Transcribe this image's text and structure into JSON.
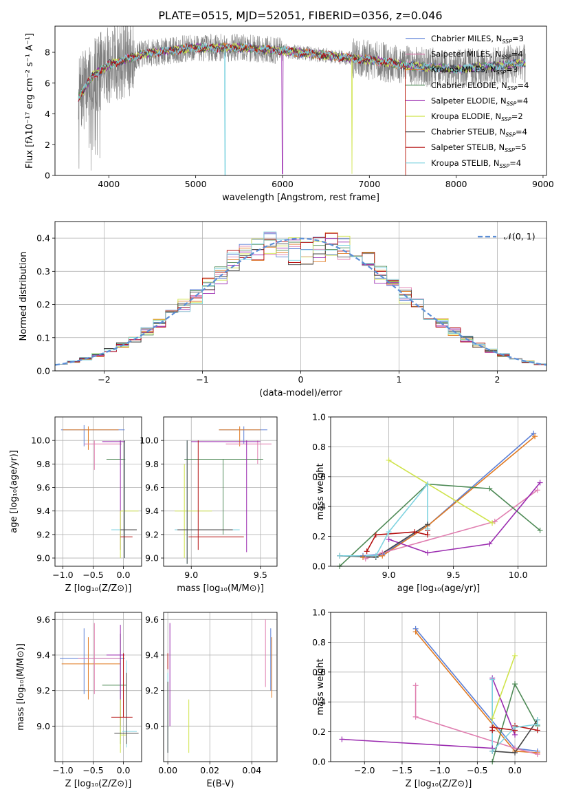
{
  "figure": {
    "title": "PLATE=0515, MJD=52051, FIBERID=0356, z=0.046"
  },
  "colors": {
    "cm": "#5b7fd6",
    "sm": "#e07fb0",
    "km": "#e07a22",
    "ce": "#4e8a56",
    "se": "#9b2cb0",
    "ke": "#cfe34a",
    "cs": "#444444",
    "ss": "#b40f0f",
    "ks": "#7fd3e0",
    "data": "#808080",
    "normal": "#5b8ed6"
  },
  "chart_data": [
    {
      "id": "spectrum",
      "type": "line",
      "xlabel": "wavelength [Angstrom, rest frame]",
      "ylabel": "Flux [fλ10⁻¹⁷ erg cm⁻² s⁻¹ A⁻¹]",
      "xlim": [
        3380,
        9040
      ],
      "ylim": [
        0,
        9.7
      ],
      "xticks": [
        "4000",
        "5000",
        "6000",
        "7000",
        "8000",
        "9000"
      ],
      "yticks": [
        "0",
        "2",
        "4",
        "6",
        "8"
      ],
      "wavelength_range": [
        3650,
        8800
      ],
      "continuum": [
        [
          3650,
          5.0
        ],
        [
          3800,
          6.4
        ],
        [
          4000,
          7.2
        ],
        [
          4400,
          7.9
        ],
        [
          5000,
          8.3
        ],
        [
          5500,
          8.3
        ],
        [
          6000,
          8.1
        ],
        [
          6500,
          7.8
        ],
        [
          7000,
          7.5
        ],
        [
          7500,
          7.1
        ],
        [
          8000,
          6.9
        ],
        [
          8800,
          7.3
        ]
      ],
      "legend": [
        {
          "label": "Chabrier MILES, N",
          "sub": "SSP",
          "tail": "=3",
          "color": "cm"
        },
        {
          "label": "Salpeter MILES, N",
          "sub": "SSP",
          "tail": "=4",
          "color": "sm"
        },
        {
          "label": "Kroupa MILES, N",
          "sub": "SSP",
          "tail": "=3",
          "color": "km"
        },
        {
          "label": "Chabrier ELODIE, N",
          "sub": "SSP",
          "tail": "=4",
          "color": "ce"
        },
        {
          "label": "Salpeter ELODIE, N",
          "sub": "SSP",
          "tail": "=4",
          "color": "se"
        },
        {
          "label": "Kroupa ELODIE, N",
          "sub": "SSP",
          "tail": "=2",
          "color": "ke"
        },
        {
          "label": "Chabrier STELIB, N",
          "sub": "SSP",
          "tail": "=4",
          "color": "cs"
        },
        {
          "label": "Salpeter STELIB, N",
          "sub": "SSP",
          "tail": "=5",
          "color": "ss"
        },
        {
          "label": "Kroupa STELIB, N",
          "sub": "SSP",
          "tail": "=4",
          "color": "ks"
        }
      ]
    },
    {
      "id": "residuals",
      "type": "step",
      "xlabel": "(data-model)/error",
      "ylabel": "Normed distribution",
      "xlim": [
        -2.5,
        2.5
      ],
      "ylim": [
        0,
        0.45
      ],
      "xticks": [
        "−2",
        "−1",
        "0",
        "1",
        "2"
      ],
      "yticks": [
        "0.0",
        "0.1",
        "0.2",
        "0.3",
        "0.4"
      ],
      "legend": "𝒩(0, 1)",
      "bin_width": 0.125
    },
    {
      "id": "age_vs_Z",
      "type": "errorbar",
      "xlabel": "Z [log₁₀(Z/Z⊙)]",
      "ylabel": "age  [log₁₀(age/yr)]",
      "xlim": [
        -1.13,
        0.3
      ],
      "ylim": [
        8.93,
        10.2
      ],
      "xticks": [
        "−1.0",
        "−0.5",
        "0.0"
      ],
      "yticks": [
        "9.0",
        "9.2",
        "9.4",
        "9.6",
        "9.8",
        "10.0"
      ],
      "points": [
        {
          "c": "cm",
          "x": -0.65,
          "ex": [
            -1.03,
            0.02
          ],
          "y": 10.09,
          "ey": [
            9.95,
            10.13
          ]
        },
        {
          "c": "km",
          "x": -0.58,
          "ex": [
            -1.0,
            -0.08
          ],
          "y": 10.09,
          "ey": [
            9.92,
            10.12
          ]
        },
        {
          "c": "sm",
          "x": -0.48,
          "ex": [
            -0.65,
            -0.03
          ],
          "y": 9.97,
          "ey": [
            9.75,
            10.0
          ]
        },
        {
          "c": "ce",
          "x": -0.05,
          "ex": [
            -0.28,
            0.03
          ],
          "y": 9.84,
          "ey": [
            9.84,
            10.0
          ]
        },
        {
          "c": "se",
          "x": -0.05,
          "ex": [
            -0.35,
            0.02
          ],
          "y": 9.99,
          "ey": [
            9.07,
            10.0
          ]
        },
        {
          "c": "ke",
          "x": -0.05,
          "ex": [
            -0.05,
            0.25
          ],
          "y": 9.4,
          "ey": [
            9.0,
            9.4
          ]
        },
        {
          "c": "ks",
          "x": 0.02,
          "ex": [
            -0.2,
            0.2
          ],
          "y": 9.24,
          "ey": [
            9.0,
            10.0
          ]
        },
        {
          "c": "cs",
          "x": 0.02,
          "ex": [
            -0.05,
            0.22
          ],
          "y": 9.24,
          "ey": [
            9.0,
            10.0
          ]
        },
        {
          "c": "ss",
          "x": 0.05,
          "ex": [
            -0.05,
            0.15
          ],
          "y": 9.18,
          "ey": [
            9.18,
            9.18
          ]
        }
      ]
    },
    {
      "id": "age_vs_mass",
      "type": "errorbar",
      "xlabel": "mass [log₁₀(M/M⊙)]",
      "ylabel": "",
      "xlim": [
        8.8,
        9.62
      ],
      "ylim": [
        8.93,
        10.2
      ],
      "xticks": [
        "9.0",
        "9.5"
      ],
      "yticks": [
        "9.0",
        "9.2",
        "9.4",
        "9.6",
        "9.8",
        "10.0"
      ],
      "points": [
        {
          "c": "cm",
          "x": 9.38,
          "ex": [
            9.2,
            9.55
          ],
          "y": 10.09,
          "ey": [
            9.97,
            10.12
          ]
        },
        {
          "c": "km",
          "x": 9.35,
          "ex": [
            9.2,
            9.5
          ],
          "y": 10.09,
          "ey": [
            9.95,
            10.12
          ]
        },
        {
          "c": "sm",
          "x": 9.48,
          "ex": [
            9.25,
            9.58
          ],
          "y": 9.97,
          "ey": [
            9.8,
            10.0
          ]
        },
        {
          "c": "ce",
          "x": 9.23,
          "ex": [
            8.95,
            9.52
          ],
          "y": 9.84,
          "ey": [
            9.2,
            9.84
          ]
        },
        {
          "c": "se",
          "x": 9.4,
          "ex": [
            9.0,
            9.5
          ],
          "y": 9.99,
          "ey": [
            9.05,
            10.0
          ]
        },
        {
          "c": "ke",
          "x": 8.95,
          "ex": [
            8.88,
            9.15
          ],
          "y": 9.4,
          "ey": [
            9.0,
            9.8
          ]
        },
        {
          "c": "ks",
          "x": 8.97,
          "ex": [
            8.88,
            9.35
          ],
          "y": 9.24,
          "ey": [
            8.95,
            10.0
          ]
        },
        {
          "c": "cs",
          "x": 8.97,
          "ex": [
            8.9,
            9.3
          ],
          "y": 9.24,
          "ey": [
            8.95,
            10.0
          ]
        },
        {
          "c": "ss",
          "x": 9.05,
          "ex": [
            8.98,
            9.38
          ],
          "y": 9.18,
          "ey": [
            9.07,
            10.0
          ]
        }
      ]
    },
    {
      "id": "weight_vs_age",
      "type": "line",
      "xlabel": "age  [log₁₀(age/yr)]",
      "ylabel": "mass weight",
      "xlim": [
        8.55,
        10.22
      ],
      "ylim": [
        0,
        1.0
      ],
      "xticks": [
        "9.0",
        "9.5",
        "10.0"
      ],
      "yticks": [
        "0.0",
        "0.2",
        "0.4",
        "0.6",
        "0.8",
        "1.0"
      ],
      "series": [
        {
          "c": "cm",
          "x": [
            8.8,
            8.95,
            9.3,
            10.12
          ],
          "y": [
            0.07,
            0.08,
            0.27,
            0.89
          ]
        },
        {
          "c": "km",
          "x": [
            8.8,
            8.95,
            9.3,
            10.13
          ],
          "y": [
            0.06,
            0.07,
            0.27,
            0.87
          ]
        },
        {
          "c": "sm",
          "x": [
            8.82,
            8.95,
            9.82,
            10.15
          ],
          "y": [
            0.05,
            0.09,
            0.3,
            0.51
          ]
        },
        {
          "c": "ce",
          "x": [
            8.62,
            9.3,
            9.78,
            10.17
          ],
          "y": [
            0.0,
            0.55,
            0.52,
            0.24
          ]
        },
        {
          "c": "se",
          "x": [
            9.0,
            9.3,
            9.78,
            10.17
          ],
          "y": [
            0.18,
            0.09,
            0.15,
            0.56
          ]
        },
        {
          "c": "ke",
          "x": [
            9.0,
            9.8
          ],
          "y": [
            0.71,
            0.29
          ]
        },
        {
          "c": "cs",
          "x": [
            8.62,
            8.9,
            9.3
          ],
          "y": [
            0.07,
            0.06,
            0.28
          ]
        },
        {
          "c": "ss",
          "x": [
            8.83,
            8.9,
            9.2,
            9.3,
            9.3
          ],
          "y": [
            0.1,
            0.21,
            0.23,
            0.21,
            0.24
          ]
        },
        {
          "c": "ks",
          "x": [
            8.62,
            8.9,
            9.0,
            9.3,
            9.3
          ],
          "y": [
            0.07,
            0.07,
            0.23,
            0.55,
            0.25
          ]
        }
      ]
    },
    {
      "id": "mass_vs_Z",
      "type": "errorbar",
      "xlabel": "Z [log₁₀(Z/Z⊙)]",
      "ylabel": "mass [log₁₀(M/M⊙)]",
      "xlim": [
        -1.13,
        0.3
      ],
      "ylim": [
        8.8,
        9.64
      ],
      "xticks": [
        "−1.0",
        "−0.5",
        "0.0"
      ],
      "yticks": [
        "9.0",
        "9.2",
        "9.4",
        "9.6"
      ],
      "points": [
        {
          "c": "cm",
          "x": -0.65,
          "ex": [
            -1.05,
            0.02
          ],
          "y": 9.38,
          "ey": [
            9.18,
            9.55
          ]
        },
        {
          "c": "km",
          "x": -0.58,
          "ex": [
            -1.02,
            -0.05
          ],
          "y": 9.35,
          "ey": [
            9.15,
            9.5
          ]
        },
        {
          "c": "sm",
          "x": -0.48,
          "ex": [
            -0.75,
            -0.05
          ],
          "y": 9.38,
          "ey": [
            9.18,
            9.58
          ]
        },
        {
          "c": "ce",
          "x": -0.05,
          "ex": [
            -0.35,
            0.05
          ],
          "y": 9.23,
          "ey": [
            8.9,
            9.52
          ]
        },
        {
          "c": "se",
          "x": -0.05,
          "ex": [
            -0.28,
            0.02
          ],
          "y": 9.4,
          "ey": [
            9.0,
            9.57
          ]
        },
        {
          "c": "ke",
          "x": -0.05,
          "ex": [
            -0.05,
            0.05
          ],
          "y": 8.95,
          "ey": [
            8.85,
            9.15
          ]
        },
        {
          "c": "ks",
          "x": 0.05,
          "ex": [
            -0.02,
            0.22
          ],
          "y": 8.97,
          "ey": [
            8.88,
            9.37
          ]
        },
        {
          "c": "cs",
          "x": 0.05,
          "ex": [
            -0.15,
            0.25
          ],
          "y": 8.96,
          "ey": [
            8.9,
            9.3
          ]
        },
        {
          "c": "ss",
          "x": 0.0,
          "ex": [
            -0.2,
            0.15
          ],
          "y": 9.05,
          "ey": [
            9.05,
            9.41
          ]
        }
      ]
    },
    {
      "id": "mass_vs_ebv",
      "type": "errorbar",
      "xlabel": "E(B-V)",
      "ylabel": "",
      "xlim": [
        -0.002,
        0.052
      ],
      "ylim": [
        8.8,
        9.64
      ],
      "xticks": [
        "0.00",
        "0.02",
        "0.04"
      ],
      "yticks": [
        "9.0",
        "9.2",
        "9.4",
        "9.6"
      ],
      "bars": [
        {
          "c": "cm",
          "x": 0.049,
          "y": [
            9.2,
            9.55
          ]
        },
        {
          "c": "km",
          "x": 0.0495,
          "y": [
            9.16,
            9.5
          ]
        },
        {
          "c": "sm",
          "x": 0.0465,
          "y": [
            9.22,
            9.6
          ]
        },
        {
          "c": "se",
          "x": 0.001,
          "y": [
            9.0,
            9.58
          ]
        },
        {
          "c": "ke",
          "x": 0.01,
          "y": [
            8.85,
            9.15
          ]
        },
        {
          "c": "ss",
          "x": 0.0,
          "y": [
            9.32,
            9.41
          ]
        },
        {
          "c": "ks",
          "x": 0.0,
          "y": [
            8.85,
            9.3
          ]
        },
        {
          "c": "cs",
          "x": 0.0,
          "y": [
            8.85,
            9.25
          ]
        }
      ]
    },
    {
      "id": "weight_vs_Z",
      "type": "line",
      "xlabel": "Z [log₁₀(Z/Z⊙)]",
      "ylabel": "mass weight",
      "xlim": [
        -2.45,
        0.42
      ],
      "ylim": [
        0,
        1.0
      ],
      "xticks": [
        "−2.0",
        "−1.5",
        "−1.0",
        "−0.5",
        "0.0"
      ],
      "yticks": [
        "0.0",
        "0.2",
        "0.4",
        "0.6",
        "0.8",
        "1.0"
      ],
      "series": [
        {
          "c": "cm",
          "x": [
            -1.32,
            0.0,
            0.3
          ],
          "y": [
            0.89,
            0.09,
            0.07
          ]
        },
        {
          "c": "km",
          "x": [
            -1.32,
            0.0,
            0.3
          ],
          "y": [
            0.87,
            0.07,
            0.06
          ]
        },
        {
          "c": "sm",
          "x": [
            -1.32,
            -1.32,
            0.0,
            0.3
          ],
          "y": [
            0.51,
            0.3,
            0.09,
            0.05
          ]
        },
        {
          "c": "ce",
          "x": [
            -0.3,
            0.0,
            0.3
          ],
          "y": [
            0.0,
            0.52,
            0.24
          ]
        },
        {
          "c": "se",
          "x": [
            -2.3,
            -0.3,
            -0.3,
            0.0
          ],
          "y": [
            0.15,
            0.09,
            0.56,
            0.18
          ]
        },
        {
          "c": "ke",
          "x": [
            -0.3,
            0.0
          ],
          "y": [
            0.29,
            0.71
          ]
        },
        {
          "c": "cs",
          "x": [
            -0.3,
            0.0,
            0.3
          ],
          "y": [
            0.07,
            0.06,
            0.28
          ]
        },
        {
          "c": "ss",
          "x": [
            -0.3,
            -0.3,
            0.0,
            0.0,
            0.3
          ],
          "y": [
            0.21,
            0.23,
            0.21,
            0.24,
            0.21
          ]
        },
        {
          "c": "ks",
          "x": [
            -0.3,
            -0.3,
            0.0,
            0.3,
            0.3
          ],
          "y": [
            0.55,
            0.07,
            0.23,
            0.25,
            0.28
          ]
        }
      ]
    }
  ]
}
